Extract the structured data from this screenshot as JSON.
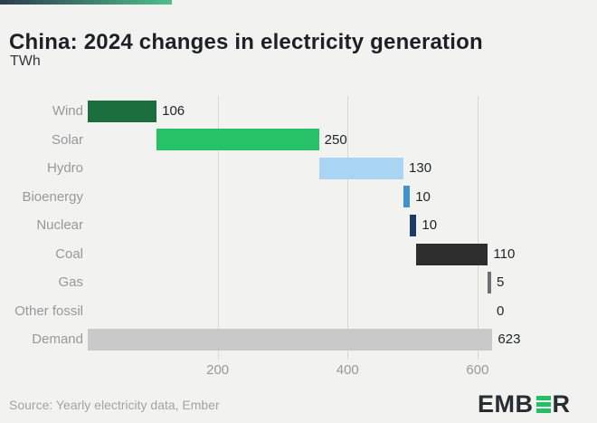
{
  "accent_bar": {
    "gradient_from": "#2d3c4e",
    "gradient_to": "#4fbe8b"
  },
  "header": {
    "title": "China: 2024 changes in electricity generation",
    "subtitle": "TWh"
  },
  "chart_data": {
    "type": "bar",
    "subtype": "horizontal-waterfall",
    "title": "China: 2024 changes in electricity generation",
    "ylabel": "TWh",
    "xlabel": "",
    "categories": [
      "Wind",
      "Solar",
      "Hydro",
      "Bioenergy",
      "Nuclear",
      "Coal",
      "Gas",
      "Other fossil",
      "Demand"
    ],
    "values": [
      106,
      250,
      130,
      10,
      10,
      110,
      5,
      0,
      623
    ],
    "starts": [
      0,
      106,
      356,
      486,
      496,
      506,
      616,
      621,
      0
    ],
    "value_labels": [
      "106",
      "250",
      "130",
      "10",
      "10",
      "110",
      "5",
      "0",
      "623"
    ],
    "colors": [
      "#1b6e3d",
      "#27c168",
      "#a9d4f2",
      "#3e93cf",
      "#1d3a63",
      "#2e2e2e",
      "#707070",
      "#707070",
      "#c9c9c9"
    ],
    "xlim": [
      0,
      770
    ],
    "xticks": [
      200,
      400,
      600
    ],
    "grid": true,
    "legend": false,
    "gridline_color": "#d8d8d6"
  },
  "footer": {
    "source": "Source: Yearly electricity data, Ember",
    "logo": {
      "text_left": "EMB",
      "text_right": "R",
      "bar_color": "#21c063",
      "text_color": "#282d32"
    }
  }
}
